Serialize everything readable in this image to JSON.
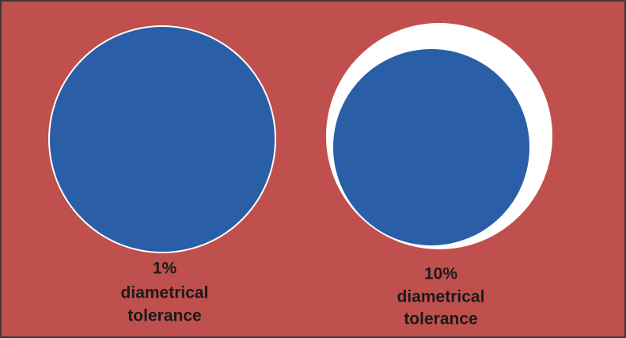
{
  "figures": [
    {
      "lines": [
        "1%",
        "diametrical",
        "tolerance"
      ]
    },
    {
      "lines": [
        "10%",
        "diametrical",
        "tolerance"
      ]
    }
  ]
}
